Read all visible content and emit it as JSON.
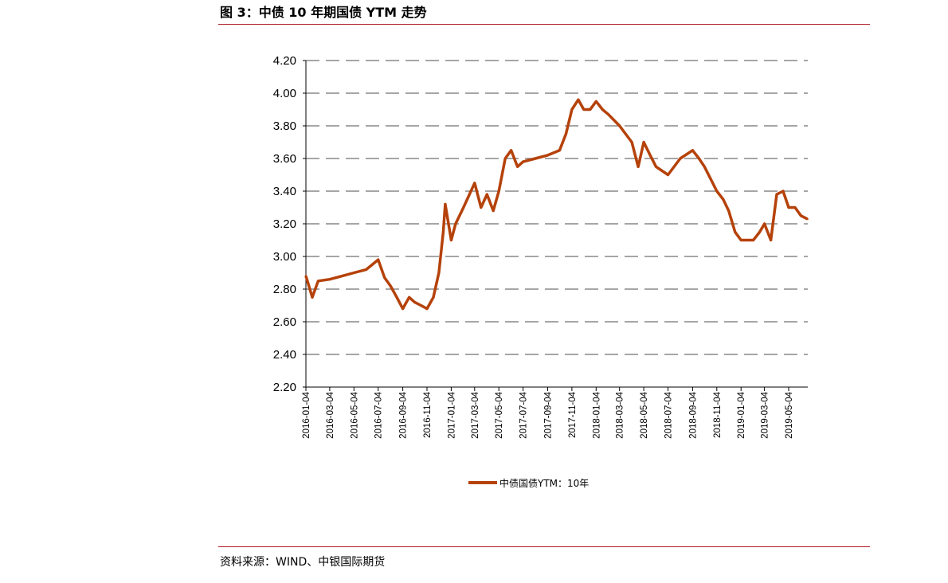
{
  "figure": {
    "title": "图 3：中债 10 年期国债 YTM 走势",
    "source": "资料来源：WIND、中银国际期货"
  },
  "colors": {
    "series": "#b5420a",
    "rule": "#b01c26",
    "grid": "#888888"
  },
  "chart_data": {
    "type": "line",
    "title": "",
    "xlabel": "",
    "ylabel": "",
    "ylim": [
      2.2,
      4.2
    ],
    "yticks": [
      "4.20",
      "4.00",
      "3.80",
      "3.60",
      "3.40",
      "3.20",
      "3.00",
      "2.80",
      "2.60",
      "2.40",
      "2.20"
    ],
    "xticks": [
      "2016-01-04",
      "2016-03-04",
      "2016-05-04",
      "2016-07-04",
      "2016-09-04",
      "2016-11-04",
      "2017-01-04",
      "2017-03-04",
      "2017-05-04",
      "2017-07-04",
      "2017-09-04",
      "2017-11-04",
      "2018-01-04",
      "2018-03-04",
      "2018-05-04",
      "2018-07-04",
      "2018-09-04",
      "2018-11-04",
      "2019-01-04",
      "2019-03-04",
      "2019-05-04"
    ],
    "grid": "horizontal dashed",
    "legend_position": "bottom",
    "series": [
      {
        "name": "中债国债YTM：10年",
        "x": [
          "2016-01-04",
          "2016-01-20",
          "2016-02-04",
          "2016-03-04",
          "2016-04-04",
          "2016-05-04",
          "2016-06-04",
          "2016-07-04",
          "2016-07-20",
          "2016-08-04",
          "2016-08-20",
          "2016-09-04",
          "2016-09-20",
          "2016-10-04",
          "2016-10-20",
          "2016-11-04",
          "2016-11-20",
          "2016-12-04",
          "2016-12-15",
          "2016-12-20",
          "2017-01-04",
          "2017-01-15",
          "2017-02-04",
          "2017-03-04",
          "2017-03-20",
          "2017-04-04",
          "2017-04-20",
          "2017-05-04",
          "2017-05-20",
          "2017-06-04",
          "2017-06-20",
          "2017-07-04",
          "2017-08-04",
          "2017-09-04",
          "2017-10-04",
          "2017-10-20",
          "2017-11-04",
          "2017-11-20",
          "2017-12-04",
          "2017-12-20",
          "2018-01-04",
          "2018-01-20",
          "2018-02-04",
          "2018-03-04",
          "2018-04-04",
          "2018-04-20",
          "2018-05-04",
          "2018-05-20",
          "2018-06-04",
          "2018-07-04",
          "2018-08-04",
          "2018-09-04",
          "2018-09-20",
          "2018-10-04",
          "2018-11-04",
          "2018-11-20",
          "2018-12-04",
          "2018-12-20",
          "2019-01-04",
          "2019-02-04",
          "2019-02-20",
          "2019-03-04",
          "2019-03-20",
          "2019-04-04",
          "2019-04-20",
          "2019-05-04",
          "2019-05-20",
          "2019-06-04",
          "2019-06-20"
        ],
        "values": [
          2.88,
          2.75,
          2.85,
          2.86,
          2.88,
          2.9,
          2.92,
          2.98,
          2.87,
          2.82,
          2.75,
          2.68,
          2.75,
          2.72,
          2.7,
          2.68,
          2.75,
          2.9,
          3.15,
          3.32,
          3.1,
          3.2,
          3.3,
          3.45,
          3.3,
          3.38,
          3.28,
          3.4,
          3.6,
          3.65,
          3.55,
          3.58,
          3.6,
          3.62,
          3.65,
          3.75,
          3.9,
          3.96,
          3.9,
          3.9,
          3.95,
          3.9,
          3.87,
          3.8,
          3.7,
          3.55,
          3.7,
          3.62,
          3.55,
          3.5,
          3.6,
          3.65,
          3.6,
          3.55,
          3.4,
          3.35,
          3.28,
          3.15,
          3.1,
          3.1,
          3.15,
          3.2,
          3.1,
          3.38,
          3.4,
          3.3,
          3.3,
          3.25,
          3.23
        ]
      }
    ]
  }
}
